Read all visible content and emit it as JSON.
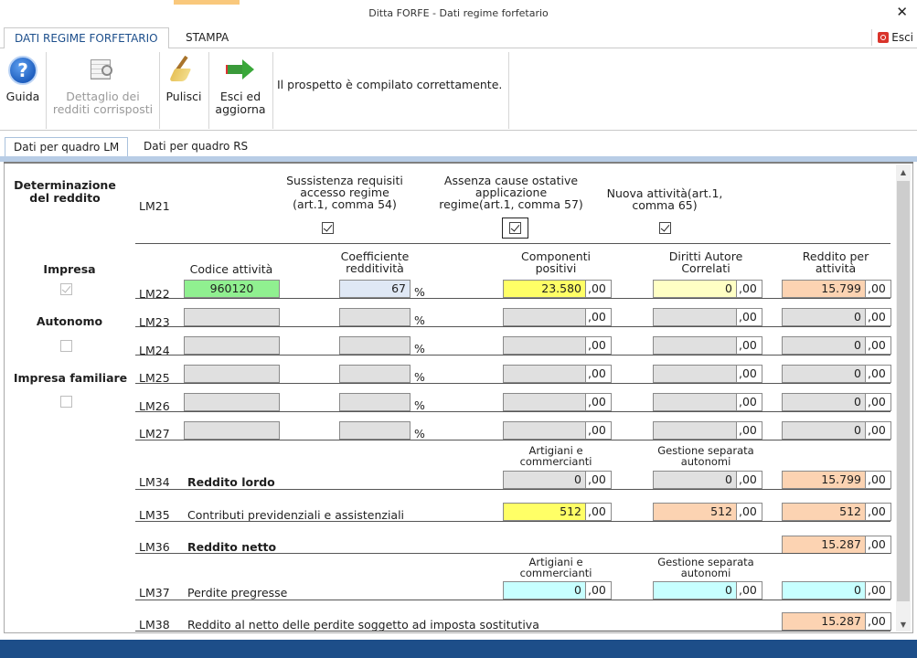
{
  "window": {
    "title": "Ditta FORFE - Dati regime forfetario",
    "close_glyph": "✕"
  },
  "ribbon_tabs": [
    {
      "label": "DATI REGIME FORFETARIO"
    },
    {
      "label": "STAMPA"
    }
  ],
  "esci_top": {
    "label": "Esci",
    "icon": "exit-icon"
  },
  "ribbon": {
    "guida": {
      "label": "Guida",
      "icon": "help-icon",
      "glyph": "?"
    },
    "dettaglio": {
      "line1": "Dettaglio dei",
      "line2": "redditi corrisposti",
      "icon": "table-magnifier-icon"
    },
    "pulisci": {
      "label": "Pulisci",
      "icon": "broom-icon"
    },
    "esci_aggiorna": {
      "line1": "Esci ed",
      "line2": "aggiorna",
      "icon": "green-arrow-icon"
    },
    "message": "Il prospetto è compilato correttamente."
  },
  "subtabs": [
    {
      "label": "Dati per quadro LM"
    },
    {
      "label": "Dati per quadro RS"
    }
  ],
  "left": {
    "title_line1": "Determinazione",
    "title_line2": "del reddito",
    "impresa": "Impresa",
    "autonomo": "Autonomo",
    "impresa_familiare": "Impresa familiare"
  },
  "lm21": {
    "code": "LM21",
    "col1": [
      "Sussistenza requisiti",
      "accesso regime",
      "(art.1, comma 54)"
    ],
    "col2": [
      "Assenza cause ostative",
      "applicazione",
      "regime(art.1, comma 57)"
    ],
    "col3": [
      "Nuova attività(art.1,",
      "comma 65)"
    ]
  },
  "headers": {
    "codice": "Codice attività",
    "coeff": [
      "Coefficiente",
      "redditività"
    ],
    "comp": [
      "Componenti",
      "positivi"
    ],
    "diritti": [
      "Diritti Autore",
      "Correlati"
    ],
    "reddito": [
      "Reddito per",
      "attività"
    ]
  },
  "rows": [
    {
      "code": "LM22",
      "codice": "960120",
      "coeff": "67",
      "comp": "23.580",
      "diritti": "0",
      "reddito": "15.799"
    },
    {
      "code": "LM23",
      "codice": "",
      "coeff": "",
      "comp": "",
      "diritti": "",
      "reddito": "0"
    },
    {
      "code": "LM24",
      "codice": "",
      "coeff": "",
      "comp": "",
      "diritti": "",
      "reddito": "0"
    },
    {
      "code": "LM25",
      "codice": "",
      "coeff": "",
      "comp": "",
      "diritti": "",
      "reddito": "0"
    },
    {
      "code": "LM26",
      "codice": "",
      "coeff": "",
      "comp": "",
      "diritti": "",
      "reddito": "0"
    },
    {
      "code": "LM27",
      "codice": "",
      "coeff": "",
      "comp": "",
      "diritti": "",
      "reddito": "0"
    }
  ],
  "pct": "%",
  "dec": ",00",
  "sub_headers": {
    "artigiani": [
      "Artigiani e",
      "commercianti"
    ],
    "gestione": [
      "Gestione separata",
      "autonomi"
    ]
  },
  "lm34": {
    "code": "LM34",
    "label": "Reddito lordo",
    "artigiani": "0",
    "gestione": "0",
    "totale": "15.799"
  },
  "lm35": {
    "code": "LM35",
    "label": "Contributi previdenziali e assistenziali",
    "artigiani": "512",
    "gestione": "512",
    "totale": "512"
  },
  "lm36": {
    "code": "LM36",
    "label": "Reddito netto",
    "totale": "15.287"
  },
  "lm37": {
    "code": "LM37",
    "label": "Perdite pregresse",
    "artigiani": "0",
    "gestione": "0",
    "totale": "0"
  },
  "lm38": {
    "code": "LM38",
    "label": "Reddito al netto delle perdite soggetto ad imposta sostitutiva",
    "totale": "15.287"
  },
  "scrollbar": {
    "up": "▲",
    "down": "▼"
  }
}
